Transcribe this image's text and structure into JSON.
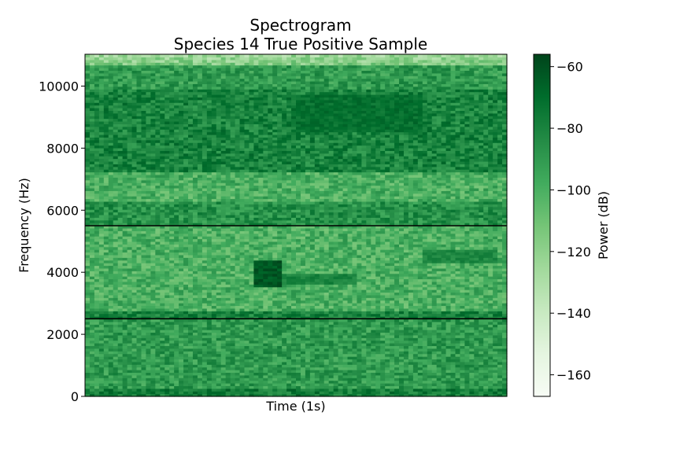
{
  "chart_data": {
    "type": "heatmap",
    "title": "Spectrogram",
    "subtitle": "Species 14 True Positive Sample",
    "xlabel": "Time (1s)",
    "ylabel": "Frequency (Hz)",
    "ylim": [
      0,
      11025
    ],
    "yticks": [
      0,
      2000,
      4000,
      6000,
      8000,
      10000
    ],
    "ytick_labels": [
      "0",
      "2000",
      "4000",
      "6000",
      "8000",
      "10000"
    ],
    "colormap": "Greens",
    "colorbar": {
      "label": "Power (dB)",
      "range": [
        -167,
        -56
      ],
      "ticks": [
        -60,
        -80,
        -100,
        -120,
        -140,
        -160
      ],
      "tick_labels": [
        "−60",
        "−80",
        "−100",
        "−120",
        "−140",
        "−160"
      ]
    },
    "horizontal_lines_hz": [
      5500,
      2500
    ],
    "line_color": "#000000",
    "cells": {
      "time_bins": 90,
      "freq_bins": 128
    },
    "features": [
      {
        "t": [
          0.4,
          0.47
        ],
        "f": [
          3550,
          4350
        ],
        "power_db": -62
      },
      {
        "t": [
          0.44,
          0.64
        ],
        "f": [
          3650,
          4000
        ],
        "power_db": -80
      },
      {
        "t": [
          0.8,
          0.98
        ],
        "f": [
          4300,
          4700
        ],
        "power_db": -82
      },
      {
        "t": [
          0.5,
          0.8
        ],
        "f": [
          8500,
          9700
        ],
        "power_db": -72
      }
    ]
  }
}
